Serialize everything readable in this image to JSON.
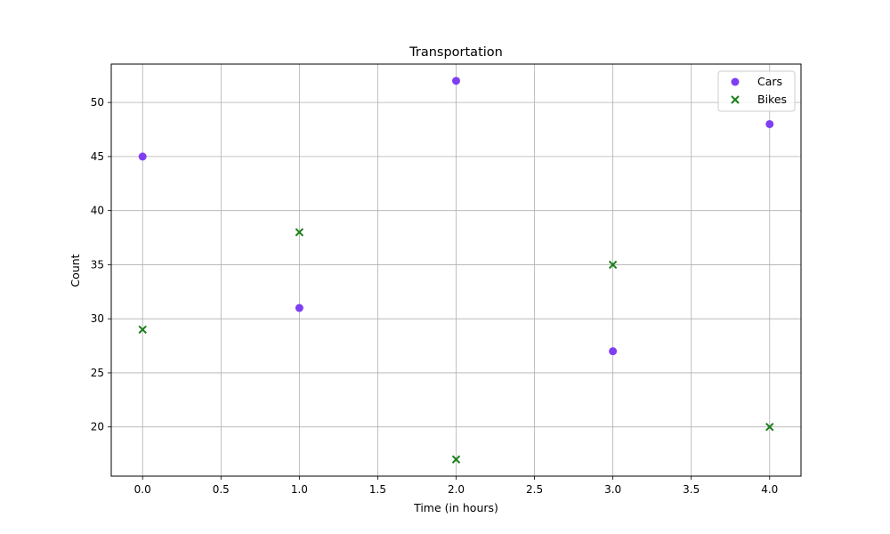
{
  "chart_data": {
    "type": "scatter",
    "title": "Transportation",
    "xlabel": "Time (in hours)",
    "ylabel": "Count",
    "xlim": [
      -0.2,
      4.2
    ],
    "ylim": [
      15.45,
      53.55
    ],
    "xticks": [
      0.0,
      0.5,
      1.0,
      1.5,
      2.0,
      2.5,
      3.0,
      3.5,
      4.0
    ],
    "xtick_labels": [
      "0.0",
      "0.5",
      "1.0",
      "1.5",
      "2.0",
      "2.5",
      "3.0",
      "3.5",
      "4.0"
    ],
    "yticks": [
      20,
      25,
      30,
      35,
      40,
      45,
      50
    ],
    "ytick_labels": [
      "20",
      "25",
      "30",
      "35",
      "40",
      "45",
      "50"
    ],
    "grid": true,
    "legend_position": "top-right",
    "series": [
      {
        "name": "Cars",
        "marker": "circle",
        "color": "#7e3ff2",
        "x": [
          0,
          1,
          2,
          3,
          4
        ],
        "y": [
          45,
          31,
          52,
          27,
          48
        ]
      },
      {
        "name": "Bikes",
        "marker": "x",
        "color": "#1a7f1a",
        "x": [
          0,
          1,
          2,
          3,
          4
        ],
        "y": [
          29,
          38,
          17,
          35,
          20
        ]
      }
    ]
  }
}
